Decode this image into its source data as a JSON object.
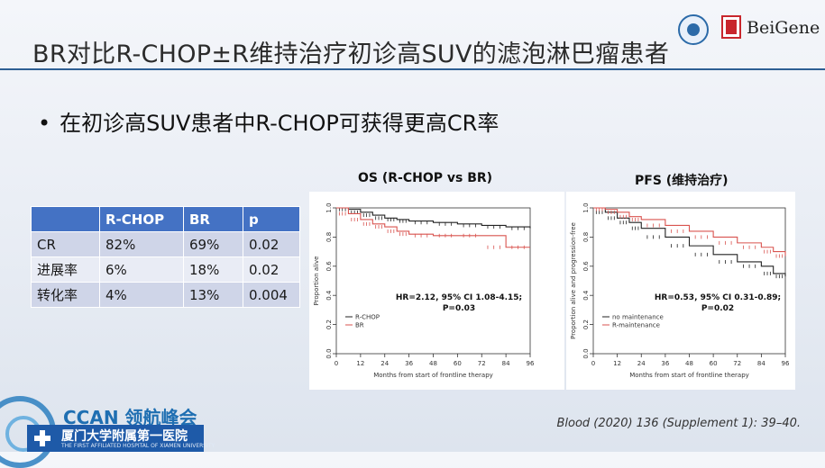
{
  "slide": {
    "title": "BR对比R-CHOP±R维持治疗初诊高SUV的滤泡淋巴瘤患者",
    "bullet": "在初诊高SUV患者中R-CHOP可获得更高CR率",
    "bullet_symbol": "•",
    "logo_text": "BeiGene",
    "citation": "Blood (2020) 136 (Supplement 1): 39–40.",
    "footer_brand": "CCAN 领航峰会",
    "hospital_name": "厦门大学附属第一医院",
    "hospital_sub": "THE FIRST AFFILIATED HOSPITAL OF XIAMEN UNIVERSITY"
  },
  "table": {
    "header": [
      "",
      "R-CHOP",
      "BR",
      "p"
    ],
    "rows": [
      [
        "CR",
        "82%",
        "69%",
        "0.02"
      ],
      [
        "进展率",
        "6%",
        "18%",
        "0.02"
      ],
      [
        "转化率",
        "4%",
        "13%",
        "0.004"
      ]
    ]
  },
  "colors": {
    "accent": "#2d5f93",
    "table_header": "#4472c4",
    "black_curve": "#222222",
    "red_curve": "#d9534f"
  },
  "chart_data": [
    {
      "type": "line",
      "title": "OS (R-CHOP vs BR)",
      "xlabel": "Months from start of frontline therapy",
      "ylabel": "Proportion alive",
      "xlim": [
        0,
        96
      ],
      "ylim": [
        0,
        1.0
      ],
      "x_ticks": [
        0,
        12,
        24,
        36,
        48,
        60,
        72,
        84,
        96
      ],
      "y_ticks": [
        "0.0",
        "0.2",
        "0.4",
        "0.6",
        "0.8",
        "1.0"
      ],
      "annotation": [
        "HR=2.12, 95% CI 1.08-4.15;",
        "P=0.03"
      ],
      "series": [
        {
          "name": "R-CHOP",
          "color": "#222222",
          "x": [
            0,
            6,
            12,
            18,
            24,
            30,
            36,
            48,
            60,
            72,
            84,
            96
          ],
          "y": [
            1.0,
            0.99,
            0.97,
            0.95,
            0.93,
            0.92,
            0.91,
            0.9,
            0.89,
            0.88,
            0.87,
            0.86
          ]
        },
        {
          "name": "BR",
          "color": "#d9534f",
          "x": [
            0,
            6,
            12,
            18,
            24,
            30,
            36,
            48,
            60,
            72,
            84,
            96
          ],
          "y": [
            1.0,
            0.96,
            0.92,
            0.89,
            0.87,
            0.84,
            0.82,
            0.81,
            0.81,
            0.81,
            0.73,
            0.73
          ]
        }
      ]
    },
    {
      "type": "line",
      "title": "PFS (维持治疗)",
      "xlabel": "Months from start of frontline therapy",
      "ylabel": "Proportion alive and progression-free",
      "xlim": [
        0,
        96
      ],
      "ylim": [
        0,
        1.0
      ],
      "x_ticks": [
        0,
        12,
        24,
        36,
        48,
        60,
        72,
        84,
        96
      ],
      "y_ticks": [
        "0.0",
        "0.2",
        "0.4",
        "0.6",
        "0.8",
        "1.0"
      ],
      "annotation": [
        "HR=0.53, 95% CI 0.31-0.89;",
        "P=0.02"
      ],
      "series": [
        {
          "name": "no maintenance",
          "color": "#222222",
          "x": [
            0,
            6,
            12,
            18,
            24,
            36,
            48,
            60,
            72,
            84,
            90,
            96
          ],
          "y": [
            1.0,
            0.97,
            0.93,
            0.9,
            0.86,
            0.8,
            0.74,
            0.68,
            0.63,
            0.6,
            0.55,
            0.53
          ]
        },
        {
          "name": "R-maintenance",
          "color": "#d9534f",
          "x": [
            0,
            6,
            12,
            18,
            24,
            36,
            48,
            60,
            72,
            84,
            90,
            96
          ],
          "y": [
            1.0,
            0.99,
            0.97,
            0.94,
            0.92,
            0.88,
            0.84,
            0.8,
            0.76,
            0.73,
            0.7,
            0.67
          ]
        }
      ]
    }
  ]
}
